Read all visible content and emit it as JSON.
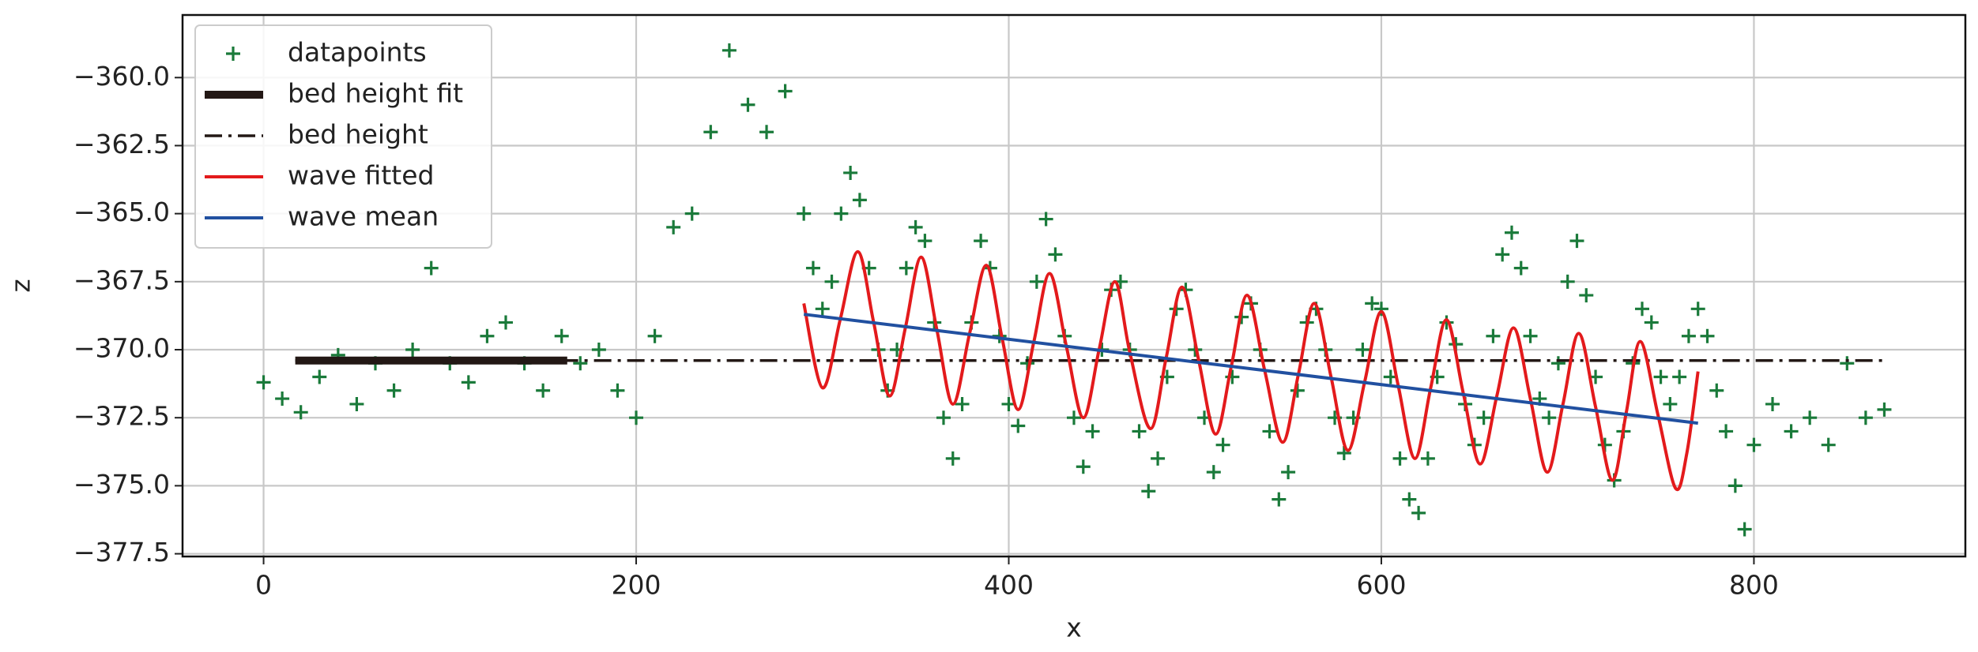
{
  "chart_data": {
    "type": "scatter",
    "xlabel": "x",
    "ylabel": "z",
    "xlim": [
      -43.5,
      913.5
    ],
    "ylim": [
      -377.6,
      -357.7
    ],
    "xticks": [
      0,
      200,
      400,
      600,
      800
    ],
    "yticks": [
      {
        "value": -360,
        "label": "−360.0"
      },
      {
        "value": -362.5,
        "label": "−362.5"
      },
      {
        "value": -365,
        "label": "−365.0"
      },
      {
        "value": -367.5,
        "label": "−367.5"
      },
      {
        "value": -370,
        "label": "−370.0"
      },
      {
        "value": -372.5,
        "label": "−372.5"
      },
      {
        "value": -375,
        "label": "−375.0"
      },
      {
        "value": -377.5,
        "label": "−377.5"
      }
    ],
    "grid": true,
    "legend": "upper left",
    "series": [
      {
        "name": "datapoints",
        "color": "#1a7a3a",
        "marker": "+",
        "x": [
          0,
          10,
          20,
          30,
          40,
          50,
          60,
          70,
          80,
          90,
          100,
          110,
          120,
          130,
          140,
          150,
          160,
          170,
          180,
          190,
          200,
          210,
          220,
          230,
          240,
          250,
          260,
          270,
          280,
          290,
          295,
          300,
          305,
          310,
          315,
          320,
          325,
          330,
          335,
          340,
          345,
          350,
          355,
          360,
          365,
          370,
          375,
          380,
          385,
          390,
          395,
          400,
          405,
          410,
          415,
          420,
          425,
          430,
          435,
          440,
          445,
          450,
          455,
          460,
          465,
          470,
          475,
          480,
          485,
          490,
          495,
          500,
          505,
          510,
          515,
          520,
          525,
          530,
          535,
          540,
          545,
          550,
          555,
          560,
          565,
          570,
          575,
          580,
          585,
          590,
          595,
          600,
          605,
          610,
          615,
          620,
          625,
          630,
          635,
          640,
          645,
          650,
          655,
          660,
          665,
          670,
          675,
          680,
          685,
          690,
          695,
          700,
          705,
          710,
          715,
          720,
          725,
          730,
          735,
          740,
          745,
          750,
          755,
          760,
          765,
          770,
          775,
          780,
          785,
          790,
          795,
          800,
          810,
          820,
          830,
          840,
          850,
          860,
          870
        ],
        "values": [
          -371.2,
          -371.8,
          -372.3,
          -371.0,
          -370.2,
          -372.0,
          -370.5,
          -371.5,
          -370.0,
          -367.0,
          -370.5,
          -371.2,
          -369.5,
          -369.0,
          -370.5,
          -371.5,
          -369.5,
          -370.5,
          -370.0,
          -371.5,
          -372.5,
          -369.5,
          -365.5,
          -365.0,
          -362.0,
          -359.0,
          -361.0,
          -362.0,
          -360.5,
          -365.0,
          -367.0,
          -368.5,
          -367.5,
          -365.0,
          -363.5,
          -364.5,
          -367.0,
          -370.0,
          -371.5,
          -370.0,
          -367.0,
          -365.5,
          -366.0,
          -369.0,
          -372.5,
          -374.0,
          -372.0,
          -369.0,
          -366.0,
          -367.0,
          -369.5,
          -372.0,
          -372.8,
          -370.5,
          -367.5,
          -365.2,
          -366.5,
          -369.5,
          -372.5,
          -374.3,
          -373.0,
          -370.0,
          -367.8,
          -367.5,
          -370.0,
          -373.0,
          -375.2,
          -374.0,
          -371.0,
          -368.5,
          -367.8,
          -370.0,
          -372.5,
          -374.5,
          -373.5,
          -371.0,
          -368.8,
          -368.3,
          -370.0,
          -373.0,
          -375.5,
          -374.5,
          -371.5,
          -369.0,
          -368.5,
          -370.0,
          -372.5,
          -373.8,
          -372.5,
          -370.0,
          -368.3,
          -368.5,
          -371.0,
          -374.0,
          -375.5,
          -376.0,
          -374.0,
          -371.0,
          -369.0,
          -369.8,
          -372.0,
          -373.5,
          -372.5,
          -369.5,
          -366.5,
          -365.7,
          -367.0,
          -369.5,
          -371.8,
          -372.5,
          -370.5,
          -367.5,
          -366.0,
          -368.0,
          -371.0,
          -373.5,
          -374.8,
          -373.0,
          -370.5,
          -368.5,
          -369.0,
          -371.0,
          -372.0,
          -371.0,
          -369.5,
          -368.5,
          -369.5,
          -371.5,
          -373.0,
          -375.0,
          -376.6,
          -373.5,
          -372.0,
          -373.0,
          -372.5,
          -373.5,
          -370.5,
          -372.5,
          -372.2
        ]
      },
      {
        "name": "bed height fit",
        "color": "#231815",
        "linewidth": 10,
        "linestyle": "solid",
        "x": [
          17,
          163
        ],
        "values": [
          -370.4,
          -370.4
        ]
      },
      {
        "name": "bed height",
        "color": "#231815",
        "linewidth": 3.5,
        "linestyle": "dashdot",
        "x": [
          17,
          870
        ],
        "values": [
          -370.4,
          -370.4
        ]
      },
      {
        "name": "wave fitted",
        "color": "#e31a1c",
        "linewidth": 4,
        "linestyle": "solid",
        "smooth": true,
        "x": [
          290,
          300,
          309.5,
          319,
          327.5,
          336,
          344.5,
          353,
          361.5,
          370,
          379,
          388,
          396.5,
          405,
          413.5,
          422,
          431,
          440,
          448.5,
          457,
          465,
          476,
          484.5,
          493,
          502,
          511,
          519.5,
          528,
          537.5,
          547,
          555.5,
          564,
          573,
          582,
          591,
          600,
          609,
          618,
          626.5,
          635,
          644,
          653,
          662,
          671,
          680,
          689,
          697.5,
          706,
          715,
          724,
          731.5,
          739,
          748.5,
          758,
          764,
          770
        ],
        "values": [
          -368.3,
          -371.4,
          -368.9,
          -366.4,
          -369.0,
          -371.7,
          -369.2,
          -366.6,
          -369.3,
          -372.0,
          -369.4,
          -366.9,
          -369.6,
          -372.2,
          -369.7,
          -367.2,
          -369.9,
          -372.5,
          -370.0,
          -367.5,
          -370.1,
          -372.9,
          -370.3,
          -367.7,
          -370.4,
          -373.1,
          -370.6,
          -368.0,
          -370.8,
          -373.4,
          -370.9,
          -368.3,
          -371.0,
          -373.7,
          -371.2,
          -368.6,
          -371.3,
          -374.0,
          -371.4,
          -368.9,
          -371.6,
          -374.2,
          -371.7,
          -369.2,
          -371.8,
          -374.5,
          -372.0,
          -369.4,
          -372.1,
          -374.8,
          -372.3,
          -369.7,
          -372.4,
          -375.1,
          -373.8,
          -370.8
        ]
      },
      {
        "name": "wave mean",
        "color": "#2150a0",
        "linewidth": 4,
        "linestyle": "solid",
        "x": [
          290,
          770
        ],
        "values": [
          -368.7,
          -372.7
        ]
      }
    ]
  }
}
